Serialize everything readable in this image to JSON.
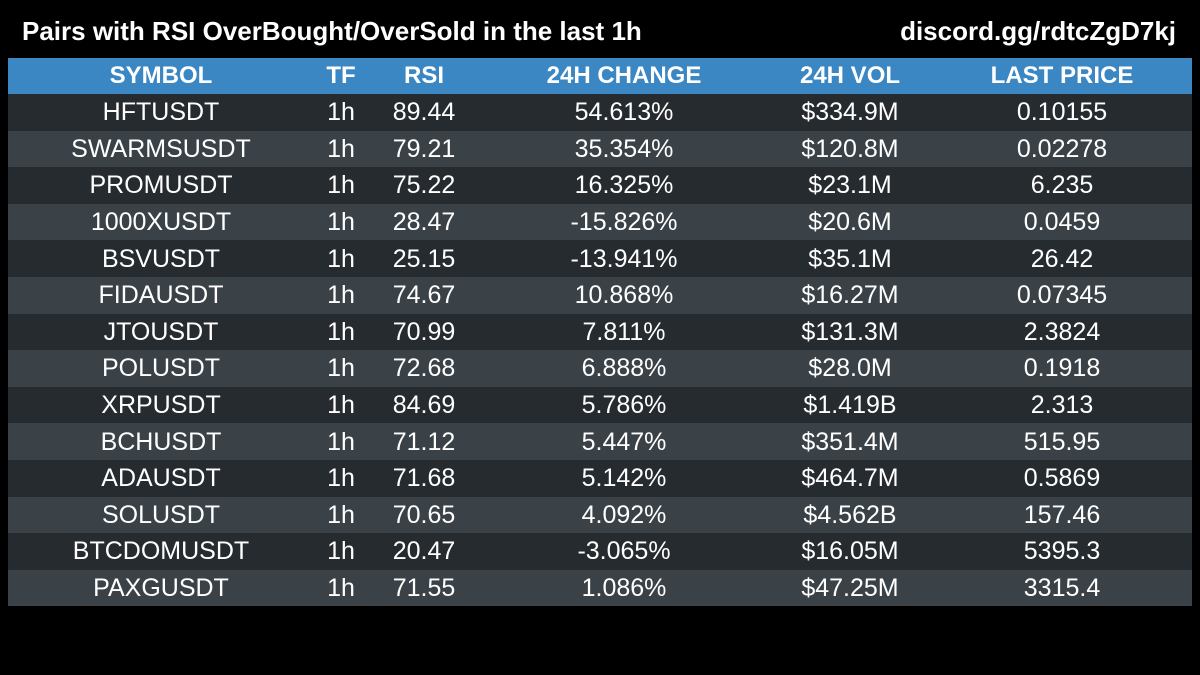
{
  "header": {
    "title": "Pairs with RSI OverBought/OverSold in the last 1h",
    "link": "discord.gg/rdtcZgD7kj"
  },
  "table": {
    "columns": [
      "SYMBOL",
      "TF",
      "RSI",
      "24H CHANGE",
      "24H VOL",
      "LAST PRICE"
    ],
    "rows": [
      [
        "HFTUSDT",
        "1h",
        "89.44",
        "54.613%",
        "$334.9M",
        "0.10155"
      ],
      [
        "SWARMSUSDT",
        "1h",
        "79.21",
        "35.354%",
        "$120.8M",
        "0.02278"
      ],
      [
        "PROMUSDT",
        "1h",
        "75.22",
        "16.325%",
        "$23.1M",
        "6.235"
      ],
      [
        "1000XUSDT",
        "1h",
        "28.47",
        "-15.826%",
        "$20.6M",
        "0.0459"
      ],
      [
        "BSVUSDT",
        "1h",
        "25.15",
        "-13.941%",
        "$35.1M",
        "26.42"
      ],
      [
        "FIDAUSDT",
        "1h",
        "74.67",
        "10.868%",
        "$16.27M",
        "0.07345"
      ],
      [
        "JTOUSDT",
        "1h",
        "70.99",
        "7.811%",
        "$131.3M",
        "2.3824"
      ],
      [
        "POLUSDT",
        "1h",
        "72.68",
        "6.888%",
        "$28.0M",
        "0.1918"
      ],
      [
        "XRPUSDT",
        "1h",
        "84.69",
        "5.786%",
        "$1.419B",
        "2.313"
      ],
      [
        "BCHUSDT",
        "1h",
        "71.12",
        "5.447%",
        "$351.4M",
        "515.95"
      ],
      [
        "ADAUSDT",
        "1h",
        "71.68",
        "5.142%",
        "$464.7M",
        "0.5869"
      ],
      [
        "SOLUSDT",
        "1h",
        "70.65",
        "4.092%",
        "$4.562B",
        "157.46"
      ],
      [
        "BTCDOMUSDT",
        "1h",
        "20.47",
        "-3.065%",
        "$16.05M",
        "5395.3"
      ],
      [
        "PAXGUSDT",
        "1h",
        "71.55",
        "1.086%",
        "$47.25M",
        "3315.4"
      ]
    ]
  },
  "colors": {
    "background": "#000000",
    "header_row": "#3a87c3",
    "row_dark": "#262b30",
    "row_light": "#3a4248",
    "text": "#ffffff"
  }
}
